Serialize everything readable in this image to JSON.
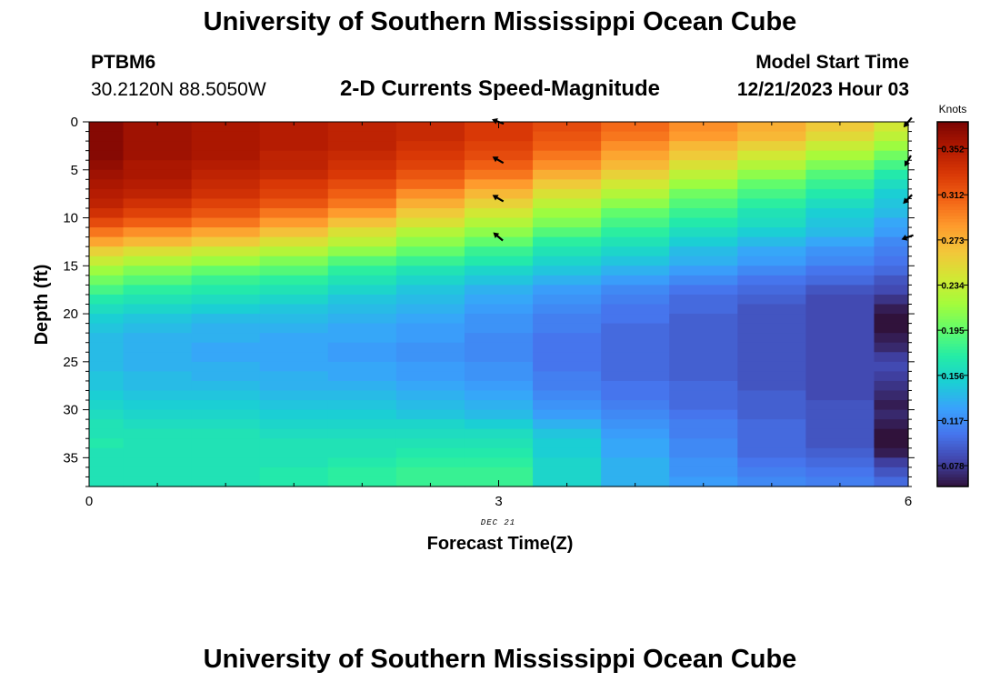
{
  "header": {
    "title": "University of Southern Mississippi Ocean Cube",
    "station": "PTBM6",
    "coords": "30.2120N  88.5050W",
    "subtitle": "2-D Currents Speed-Magnitude",
    "start_label": "Model Start Time",
    "start_value": "12/21/2023 Hour 03"
  },
  "footer": {
    "title": "University of Southern Mississippi Ocean Cube"
  },
  "colors": {
    "colormap": [
      "#30123b",
      "#4145ab",
      "#4675ed",
      "#39a2fc",
      "#1bcfd4",
      "#24eca6",
      "#61fc6c",
      "#a4fc3b",
      "#d1e834",
      "#f3c63a",
      "#fe9b2d",
      "#f36315",
      "#d93806",
      "#b11901",
      "#7a0403"
    ]
  },
  "chart_data": {
    "type": "heatmap",
    "title": "2-D Currents Speed-Magnitude",
    "xlabel": "Forecast Time(Z)",
    "ylabel": "Depth (ft)",
    "x_ticks": [
      "0",
      "3",
      "6"
    ],
    "x_tick_values": [
      0,
      3,
      6
    ],
    "date_label": "DEC 21",
    "date_at": 3,
    "y_ticks": [
      "0",
      "5",
      "10",
      "15",
      "20",
      "25",
      "30",
      "35"
    ],
    "y_tick_values": [
      0,
      5,
      10,
      15,
      20,
      25,
      30,
      35
    ],
    "xlim": [
      0,
      6
    ],
    "ylim": [
      0,
      38
    ],
    "y_inverted": true,
    "colorbar": {
      "label": "Knots",
      "ticks": [
        "0.352",
        "0.312",
        "0.273",
        "0.234",
        "0.195",
        "0.156",
        "0.117",
        "0.078"
      ],
      "tick_values": [
        0.352,
        0.312,
        0.273,
        0.234,
        0.195,
        0.156,
        0.117,
        0.078
      ],
      "min": 0.06,
      "max": 0.375
    },
    "time_bounds": [
      0,
      0.25,
      0.75,
      1.25,
      1.75,
      2.25,
      2.75,
      3.25,
      3.75,
      4.25,
      4.75,
      5.25,
      5.75,
      6
    ],
    "depths": [
      0,
      1,
      2,
      3,
      4,
      5,
      6,
      7,
      8,
      9,
      10,
      11,
      12,
      13,
      14,
      15,
      16,
      17,
      18,
      19,
      20,
      21,
      22,
      23,
      24,
      25,
      26,
      27,
      28,
      29,
      30,
      31,
      32,
      33,
      34,
      35,
      36,
      37
    ],
    "speed": [
      [
        0.37,
        0.36,
        0.355,
        0.35,
        0.345,
        0.34,
        0.33,
        0.32,
        0.305,
        0.29,
        0.275,
        0.26,
        0.24
      ],
      [
        0.37,
        0.36,
        0.355,
        0.35,
        0.345,
        0.34,
        0.33,
        0.315,
        0.3,
        0.285,
        0.27,
        0.25,
        0.23
      ],
      [
        0.37,
        0.36,
        0.355,
        0.35,
        0.345,
        0.335,
        0.325,
        0.31,
        0.29,
        0.27,
        0.255,
        0.235,
        0.215
      ],
      [
        0.37,
        0.36,
        0.355,
        0.345,
        0.34,
        0.33,
        0.32,
        0.3,
        0.28,
        0.26,
        0.24,
        0.22,
        0.2
      ],
      [
        0.365,
        0.355,
        0.35,
        0.345,
        0.335,
        0.325,
        0.31,
        0.29,
        0.27,
        0.245,
        0.225,
        0.205,
        0.185
      ],
      [
        0.36,
        0.355,
        0.345,
        0.34,
        0.33,
        0.315,
        0.3,
        0.275,
        0.255,
        0.23,
        0.21,
        0.19,
        0.17
      ],
      [
        0.355,
        0.35,
        0.34,
        0.33,
        0.32,
        0.305,
        0.285,
        0.26,
        0.24,
        0.215,
        0.195,
        0.18,
        0.16
      ],
      [
        0.35,
        0.345,
        0.335,
        0.325,
        0.31,
        0.29,
        0.27,
        0.245,
        0.225,
        0.2,
        0.185,
        0.17,
        0.15
      ],
      [
        0.345,
        0.335,
        0.325,
        0.315,
        0.3,
        0.275,
        0.255,
        0.23,
        0.21,
        0.19,
        0.175,
        0.16,
        0.145
      ],
      [
        0.335,
        0.325,
        0.315,
        0.3,
        0.285,
        0.26,
        0.24,
        0.215,
        0.195,
        0.18,
        0.165,
        0.15,
        0.14
      ],
      [
        0.32,
        0.31,
        0.3,
        0.285,
        0.265,
        0.245,
        0.225,
        0.205,
        0.185,
        0.17,
        0.16,
        0.145,
        0.13
      ],
      [
        0.3,
        0.29,
        0.28,
        0.265,
        0.245,
        0.225,
        0.21,
        0.19,
        0.175,
        0.16,
        0.15,
        0.14,
        0.125
      ],
      [
        0.28,
        0.27,
        0.26,
        0.245,
        0.23,
        0.21,
        0.195,
        0.175,
        0.165,
        0.15,
        0.14,
        0.13,
        0.115
      ],
      [
        0.255,
        0.245,
        0.235,
        0.225,
        0.21,
        0.195,
        0.18,
        0.165,
        0.155,
        0.14,
        0.13,
        0.12,
        0.11
      ],
      [
        0.235,
        0.225,
        0.215,
        0.205,
        0.19,
        0.18,
        0.17,
        0.155,
        0.145,
        0.135,
        0.125,
        0.115,
        0.105
      ],
      [
        0.215,
        0.205,
        0.195,
        0.19,
        0.175,
        0.165,
        0.155,
        0.145,
        0.135,
        0.125,
        0.115,
        0.105,
        0.1
      ],
      [
        0.2,
        0.19,
        0.18,
        0.175,
        0.165,
        0.155,
        0.145,
        0.135,
        0.125,
        0.115,
        0.105,
        0.1,
        0.09
      ],
      [
        0.185,
        0.175,
        0.17,
        0.165,
        0.155,
        0.145,
        0.135,
        0.125,
        0.115,
        0.105,
        0.1,
        0.09,
        0.085
      ],
      [
        0.17,
        0.165,
        0.16,
        0.155,
        0.145,
        0.14,
        0.13,
        0.12,
        0.11,
        0.1,
        0.095,
        0.085,
        0.075
      ],
      [
        0.16,
        0.155,
        0.15,
        0.145,
        0.14,
        0.135,
        0.125,
        0.115,
        0.105,
        0.1,
        0.09,
        0.085,
        0.065
      ],
      [
        0.15,
        0.145,
        0.14,
        0.14,
        0.135,
        0.13,
        0.12,
        0.11,
        0.105,
        0.095,
        0.09,
        0.085,
        0.06
      ],
      [
        0.145,
        0.14,
        0.135,
        0.135,
        0.13,
        0.125,
        0.12,
        0.11,
        0.1,
        0.095,
        0.09,
        0.085,
        0.06
      ],
      [
        0.14,
        0.135,
        0.135,
        0.13,
        0.13,
        0.125,
        0.115,
        0.105,
        0.1,
        0.095,
        0.09,
        0.085,
        0.065
      ],
      [
        0.14,
        0.135,
        0.13,
        0.13,
        0.125,
        0.12,
        0.115,
        0.105,
        0.1,
        0.095,
        0.09,
        0.085,
        0.07
      ],
      [
        0.14,
        0.135,
        0.13,
        0.13,
        0.125,
        0.12,
        0.115,
        0.105,
        0.1,
        0.095,
        0.09,
        0.085,
        0.08
      ],
      [
        0.14,
        0.135,
        0.135,
        0.13,
        0.13,
        0.125,
        0.12,
        0.105,
        0.1,
        0.095,
        0.09,
        0.085,
        0.085
      ],
      [
        0.145,
        0.14,
        0.135,
        0.135,
        0.13,
        0.125,
        0.12,
        0.11,
        0.1,
        0.095,
        0.09,
        0.085,
        0.08
      ],
      [
        0.145,
        0.14,
        0.14,
        0.135,
        0.135,
        0.13,
        0.125,
        0.11,
        0.105,
        0.1,
        0.09,
        0.085,
        0.075
      ],
      [
        0.15,
        0.145,
        0.145,
        0.14,
        0.14,
        0.135,
        0.13,
        0.115,
        0.105,
        0.1,
        0.095,
        0.085,
        0.07
      ],
      [
        0.155,
        0.15,
        0.15,
        0.145,
        0.145,
        0.14,
        0.135,
        0.12,
        0.11,
        0.1,
        0.095,
        0.09,
        0.065
      ],
      [
        0.16,
        0.155,
        0.155,
        0.15,
        0.15,
        0.145,
        0.14,
        0.125,
        0.115,
        0.105,
        0.095,
        0.09,
        0.07
      ],
      [
        0.165,
        0.16,
        0.16,
        0.155,
        0.155,
        0.155,
        0.15,
        0.135,
        0.12,
        0.11,
        0.1,
        0.09,
        0.065
      ],
      [
        0.165,
        0.165,
        0.165,
        0.16,
        0.16,
        0.16,
        0.16,
        0.145,
        0.125,
        0.11,
        0.1,
        0.09,
        0.06
      ],
      [
        0.17,
        0.165,
        0.165,
        0.165,
        0.165,
        0.165,
        0.165,
        0.15,
        0.13,
        0.115,
        0.1,
        0.09,
        0.06
      ],
      [
        0.165,
        0.165,
        0.165,
        0.165,
        0.165,
        0.17,
        0.17,
        0.15,
        0.13,
        0.115,
        0.1,
        0.095,
        0.065
      ],
      [
        0.165,
        0.165,
        0.165,
        0.165,
        0.17,
        0.175,
        0.175,
        0.155,
        0.135,
        0.12,
        0.105,
        0.1,
        0.08
      ],
      [
        0.165,
        0.165,
        0.165,
        0.17,
        0.175,
        0.18,
        0.18,
        0.155,
        0.135,
        0.12,
        0.11,
        0.105,
        0.09
      ],
      [
        0.165,
        0.165,
        0.165,
        0.17,
        0.175,
        0.18,
        0.18,
        0.155,
        0.135,
        0.125,
        0.115,
        0.11,
        0.1
      ]
    ],
    "vectors": [
      {
        "time": 3,
        "depth": 0,
        "direction_deg": 160
      },
      {
        "time": 3,
        "depth": 4,
        "direction_deg": 150
      },
      {
        "time": 3,
        "depth": 8,
        "direction_deg": 150
      },
      {
        "time": 3,
        "depth": 12,
        "direction_deg": 140
      },
      {
        "time": 6,
        "depth": 0,
        "direction_deg": 230
      },
      {
        "time": 6,
        "depth": 4,
        "direction_deg": 240
      },
      {
        "time": 6,
        "depth": 8,
        "direction_deg": 225
      },
      {
        "time": 6,
        "depth": 12,
        "direction_deg": 200
      }
    ]
  }
}
